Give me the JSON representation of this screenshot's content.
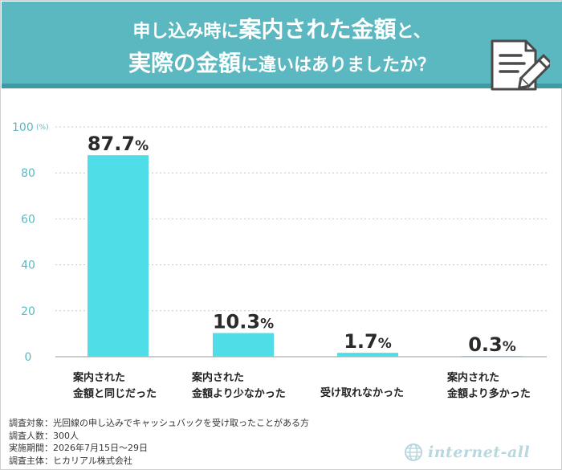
{
  "header": {
    "title_line1": [
      "申し込み時に",
      "案内された金額",
      "と、"
    ],
    "title_line2": [
      "実際の金額",
      "に違いはありましたか？"
    ]
  },
  "chart_data": {
    "type": "bar",
    "categories": [
      [
        "案内された",
        "金額と同じだった"
      ],
      [
        "案内された",
        "金額より少なかった"
      ],
      [
        "受け取れなかった"
      ],
      [
        "案内された",
        "金額より多かった"
      ]
    ],
    "values": [
      87.7,
      10.3,
      1.7,
      0.3
    ],
    "value_labels": [
      {
        "num": "87.7",
        "unit": "%"
      },
      {
        "num": "10.3",
        "unit": "%"
      },
      {
        "num": "1.7",
        "unit": "%"
      },
      {
        "num": "0.3",
        "unit": "%"
      }
    ],
    "yticks": [
      0,
      20,
      40,
      60,
      80,
      100
    ],
    "yunit": "(%)",
    "ylim": [
      0,
      100
    ],
    "bar_color": "#4fdde8",
    "axis_color": "#5bb8c1"
  },
  "footnote": [
    "調査対象：光回線の申し込みでキャッシュバックを受け取ったことがある方",
    "調査人数：300人",
    "実施期間：2026年7月15日～29日",
    "調査主体：ヒカリアル株式会社"
  ],
  "brand": {
    "name": "internet-all",
    "icon": "globe-icon"
  }
}
